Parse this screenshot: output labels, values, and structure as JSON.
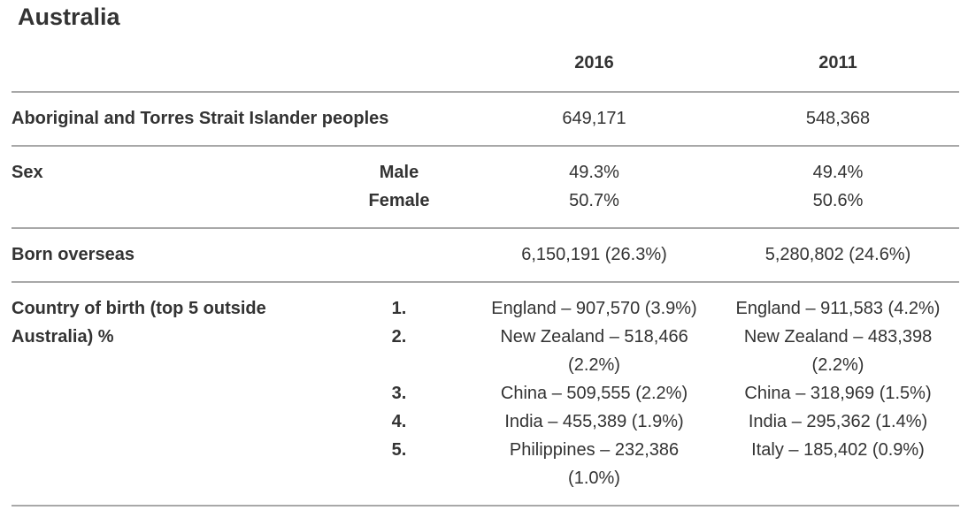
{
  "page_title": "Australia",
  "colors": {
    "text": "#333333",
    "divider": "#a8a8a8",
    "background": "#ffffff"
  },
  "table": {
    "columns": [
      "2016",
      "2011"
    ],
    "sections": [
      {
        "label": "Aboriginal and Torres Strait Islander peoples",
        "rows": [
          {
            "sub": "",
            "y2016": "649,171",
            "y2011": "548,368"
          }
        ]
      },
      {
        "label": "Sex",
        "rows": [
          {
            "sub": "Male",
            "y2016": "49.3%",
            "y2011": "49.4%"
          },
          {
            "sub": "Female",
            "y2016": "50.7%",
            "y2011": "50.6%"
          }
        ]
      },
      {
        "label": "Born overseas",
        "rows": [
          {
            "sub": "",
            "y2016": "6,150,191 (26.3%)",
            "y2011": "5,280,802 (24.6%)"
          }
        ]
      },
      {
        "label": "Country of birth (top 5 outside Australia) %",
        "rows": [
          {
            "sub": "1.",
            "y2016": "England – 907,570 (3.9%)",
            "y2011": "England – 911,583 (4.2%)"
          },
          {
            "sub": "2.",
            "y2016": "New Zealand – 518,466 (2.2%)",
            "y2011": "New Zealand – 483,398 (2.2%)"
          },
          {
            "sub": "3.",
            "y2016": "China – 509,555 (2.2%)",
            "y2011": "China – 318,969 (1.5%)"
          },
          {
            "sub": "4.",
            "y2016": "India – 455,389 (1.9%)",
            "y2011": "India – 295,362 (1.4%)"
          },
          {
            "sub": "5.",
            "y2016": "Philippines – 232,386 (1.0%)",
            "y2011": "Italy – 185,402 (0.9%)"
          }
        ]
      }
    ]
  }
}
